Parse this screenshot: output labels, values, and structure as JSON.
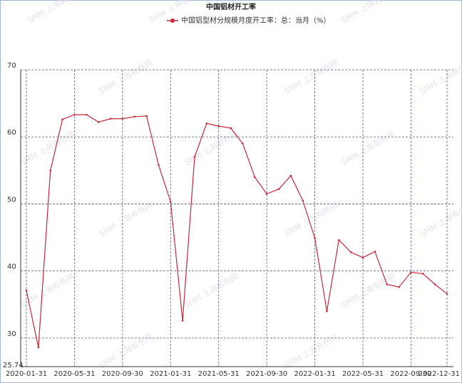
{
  "chart_data": {
    "type": "line",
    "title": "中国铝材开工率",
    "watermark": "SMM 上海有色网",
    "categories": [
      "2020-01-31",
      null,
      null,
      null,
      "2020-05-31",
      null,
      null,
      null,
      "2020-09-30",
      null,
      null,
      null,
      "2021-01-31",
      null,
      null,
      null,
      "2021-05-31",
      null,
      null,
      null,
      "2021-09-30",
      null,
      null,
      null,
      "2022-01-31",
      null,
      null,
      null,
      "2022-05-31",
      null,
      null,
      null,
      "2022-09-30",
      null,
      null,
      "2022-12-31"
    ],
    "series": [
      {
        "name": "中国铝型材分规模月度开工率：总：当月（%）",
        "color": "#c8283a",
        "values": [
          37.1,
          28.6,
          55.0,
          62.6,
          63.3,
          63.3,
          62.2,
          62.7,
          62.7,
          63.0,
          63.1,
          55.8,
          50.3,
          32.6,
          57.0,
          62.0,
          61.6,
          61.3,
          59.0,
          54.0,
          51.5,
          52.2,
          54.2,
          50.5,
          44.9,
          34.0,
          44.6,
          42.8,
          42.0,
          42.9,
          38.0,
          37.6,
          39.8,
          39.6,
          38.0,
          36.6
        ]
      }
    ],
    "ylim": [
      25.74,
      70
    ],
    "yticks": [
      25.74,
      30,
      40,
      50,
      60,
      70
    ],
    "grid": true
  }
}
